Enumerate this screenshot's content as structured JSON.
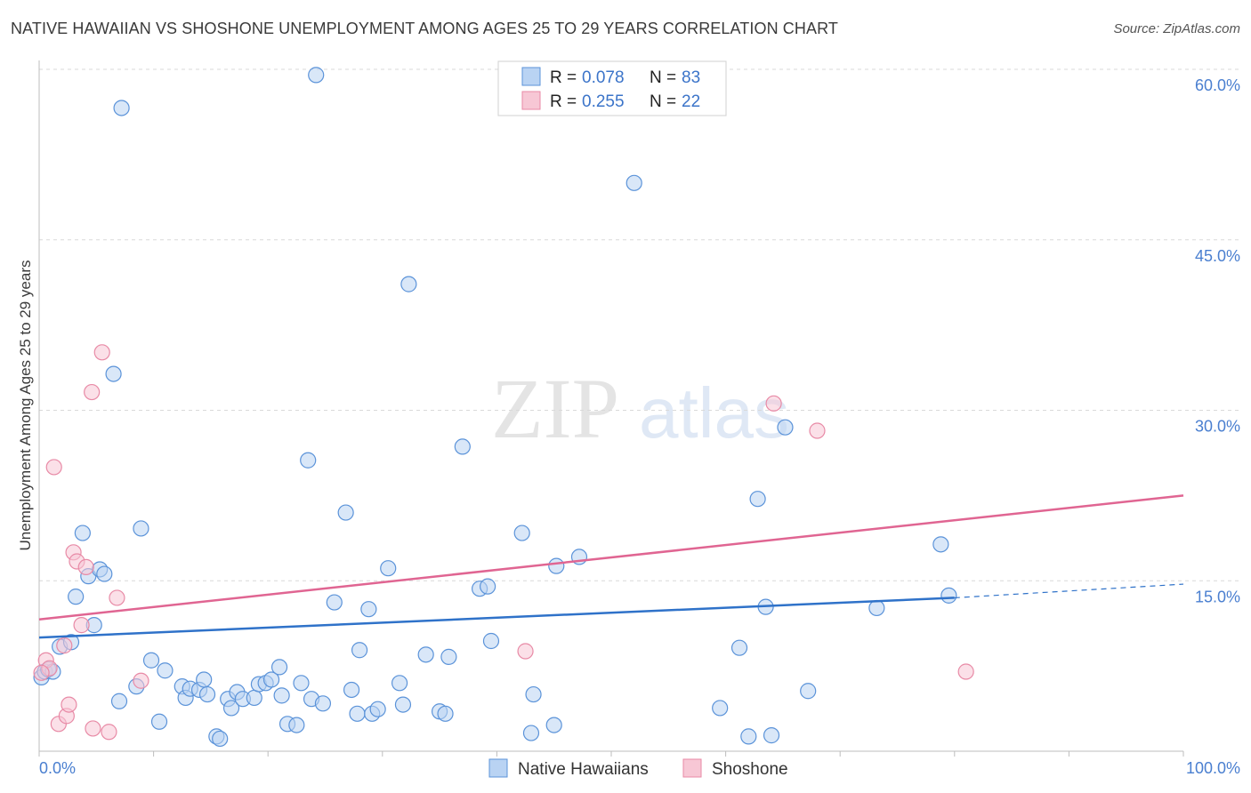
{
  "header": {
    "title": "NATIVE HAWAIIAN VS SHOSHONE UNEMPLOYMENT AMONG AGES 25 TO 29 YEARS CORRELATION CHART",
    "source": "Source: ZipAtlas.com"
  },
  "watermark": {
    "zip": "ZIP",
    "atlas": "atlas"
  },
  "colors": {
    "native_fill": "#b9d3f3",
    "native_stroke": "#5b93d9",
    "native_line": "#2f72c9",
    "shoshone_fill": "#f7c7d5",
    "shoshone_stroke": "#e88aa6",
    "shoshone_line": "#e06592",
    "grid": "#d9d9d9",
    "tick_label": "#4a7fd0"
  },
  "chart_data": {
    "type": "scatter",
    "title": "NATIVE HAWAIIAN VS SHOSHONE UNEMPLOYMENT AMONG AGES 25 TO 29 YEARS CORRELATION CHART",
    "xlabel": "",
    "ylabel": "Unemployment Among Ages 25 to 29 years",
    "xlim": [
      0,
      100
    ],
    "ylim": [
      0,
      60
    ],
    "x_tick_labels": [
      {
        "value": 0,
        "label": "0.0%"
      },
      {
        "value": 100,
        "label": "100.0%"
      }
    ],
    "y_ticks": [
      {
        "value": 15,
        "label": "15.0%"
      },
      {
        "value": 30,
        "label": "30.0%"
      },
      {
        "value": 45,
        "label": "45.0%"
      },
      {
        "value": 60,
        "label": "60.0%"
      }
    ],
    "grid": "horizontal dashed",
    "legend": {
      "placement": "top-center",
      "entries": [
        {
          "r_label": "R =",
          "r_value": "0.078",
          "n_label": "N =",
          "n_value": "83"
        },
        {
          "r_label": "R =",
          "r_value": "0.255",
          "n_label": "N =",
          "n_value": "22"
        }
      ]
    },
    "series": [
      {
        "name": "Native Hawaiians",
        "trend": {
          "x0": 0,
          "y0": 10.0,
          "x1": 80,
          "y1": 13.5,
          "dash_to_x": 100,
          "dash_to_y": 14.7
        },
        "points": [
          [
            0.2,
            6.5
          ],
          [
            0.5,
            7.0
          ],
          [
            0.8,
            7.2
          ],
          [
            1.2,
            7.0
          ],
          [
            1.8,
            9.2
          ],
          [
            2.8,
            9.6
          ],
          [
            3.2,
            13.6
          ],
          [
            3.8,
            19.2
          ],
          [
            4.3,
            15.4
          ],
          [
            4.8,
            11.1
          ],
          [
            5.3,
            16.0
          ],
          [
            5.7,
            15.6
          ],
          [
            6.5,
            33.2
          ],
          [
            7.2,
            56.6
          ],
          [
            7.0,
            4.4
          ],
          [
            8.5,
            5.7
          ],
          [
            8.9,
            19.6
          ],
          [
            9.8,
            8.0
          ],
          [
            10.5,
            2.6
          ],
          [
            11.0,
            7.1
          ],
          [
            12.5,
            5.7
          ],
          [
            12.8,
            4.7
          ],
          [
            13.2,
            5.5
          ],
          [
            14.0,
            5.4
          ],
          [
            14.4,
            6.3
          ],
          [
            14.7,
            5.0
          ],
          [
            15.5,
            1.3
          ],
          [
            15.8,
            1.1
          ],
          [
            16.5,
            4.6
          ],
          [
            16.8,
            3.8
          ],
          [
            17.3,
            5.2
          ],
          [
            17.8,
            4.6
          ],
          [
            18.8,
            4.7
          ],
          [
            19.2,
            5.9
          ],
          [
            19.8,
            6.0
          ],
          [
            20.3,
            6.3
          ],
          [
            21.0,
            7.4
          ],
          [
            21.2,
            4.9
          ],
          [
            21.7,
            2.4
          ],
          [
            22.5,
            2.3
          ],
          [
            22.9,
            6.0
          ],
          [
            23.5,
            25.6
          ],
          [
            23.8,
            4.6
          ],
          [
            24.2,
            59.5
          ],
          [
            24.8,
            4.2
          ],
          [
            25.8,
            13.1
          ],
          [
            26.8,
            21.0
          ],
          [
            27.3,
            5.4
          ],
          [
            27.8,
            3.3
          ],
          [
            28.0,
            8.9
          ],
          [
            28.8,
            12.5
          ],
          [
            29.1,
            3.3
          ],
          [
            29.6,
            3.7
          ],
          [
            30.5,
            16.1
          ],
          [
            31.5,
            6.0
          ],
          [
            31.8,
            4.1
          ],
          [
            32.3,
            41.1
          ],
          [
            33.8,
            8.5
          ],
          [
            35.0,
            3.5
          ],
          [
            35.5,
            3.3
          ],
          [
            35.8,
            8.3
          ],
          [
            37.0,
            26.8
          ],
          [
            38.5,
            14.3
          ],
          [
            39.2,
            14.5
          ],
          [
            39.5,
            9.7
          ],
          [
            42.2,
            19.2
          ],
          [
            43.0,
            1.6
          ],
          [
            43.2,
            5.0
          ],
          [
            45.0,
            2.3
          ],
          [
            45.2,
            16.3
          ],
          [
            47.2,
            17.1
          ],
          [
            52.0,
            50.0
          ],
          [
            59.5,
            3.8
          ],
          [
            61.2,
            9.1
          ],
          [
            62.0,
            1.3
          ],
          [
            62.8,
            22.2
          ],
          [
            63.5,
            12.7
          ],
          [
            64.0,
            1.4
          ],
          [
            65.2,
            28.5
          ],
          [
            67.2,
            5.3
          ],
          [
            73.2,
            12.6
          ],
          [
            78.8,
            18.2
          ],
          [
            79.5,
            13.7
          ]
        ]
      },
      {
        "name": "Shoshone",
        "trend": {
          "x0": 0,
          "y0": 11.6,
          "x1": 100,
          "y1": 22.5
        },
        "points": [
          [
            0.6,
            8.0
          ],
          [
            0.9,
            7.3
          ],
          [
            1.3,
            25.0
          ],
          [
            1.7,
            2.4
          ],
          [
            2.2,
            9.3
          ],
          [
            2.4,
            3.1
          ],
          [
            2.6,
            4.1
          ],
          [
            3.0,
            17.5
          ],
          [
            3.3,
            16.7
          ],
          [
            3.7,
            11.1
          ],
          [
            4.1,
            16.2
          ],
          [
            4.6,
            31.6
          ],
          [
            4.7,
            2.0
          ],
          [
            5.5,
            35.1
          ],
          [
            6.1,
            1.7
          ],
          [
            6.8,
            13.5
          ],
          [
            8.9,
            6.2
          ],
          [
            42.5,
            8.8
          ],
          [
            64.2,
            30.6
          ],
          [
            68.0,
            28.2
          ],
          [
            81.0,
            7.0
          ],
          [
            0.2,
            6.9
          ]
        ]
      }
    ]
  }
}
